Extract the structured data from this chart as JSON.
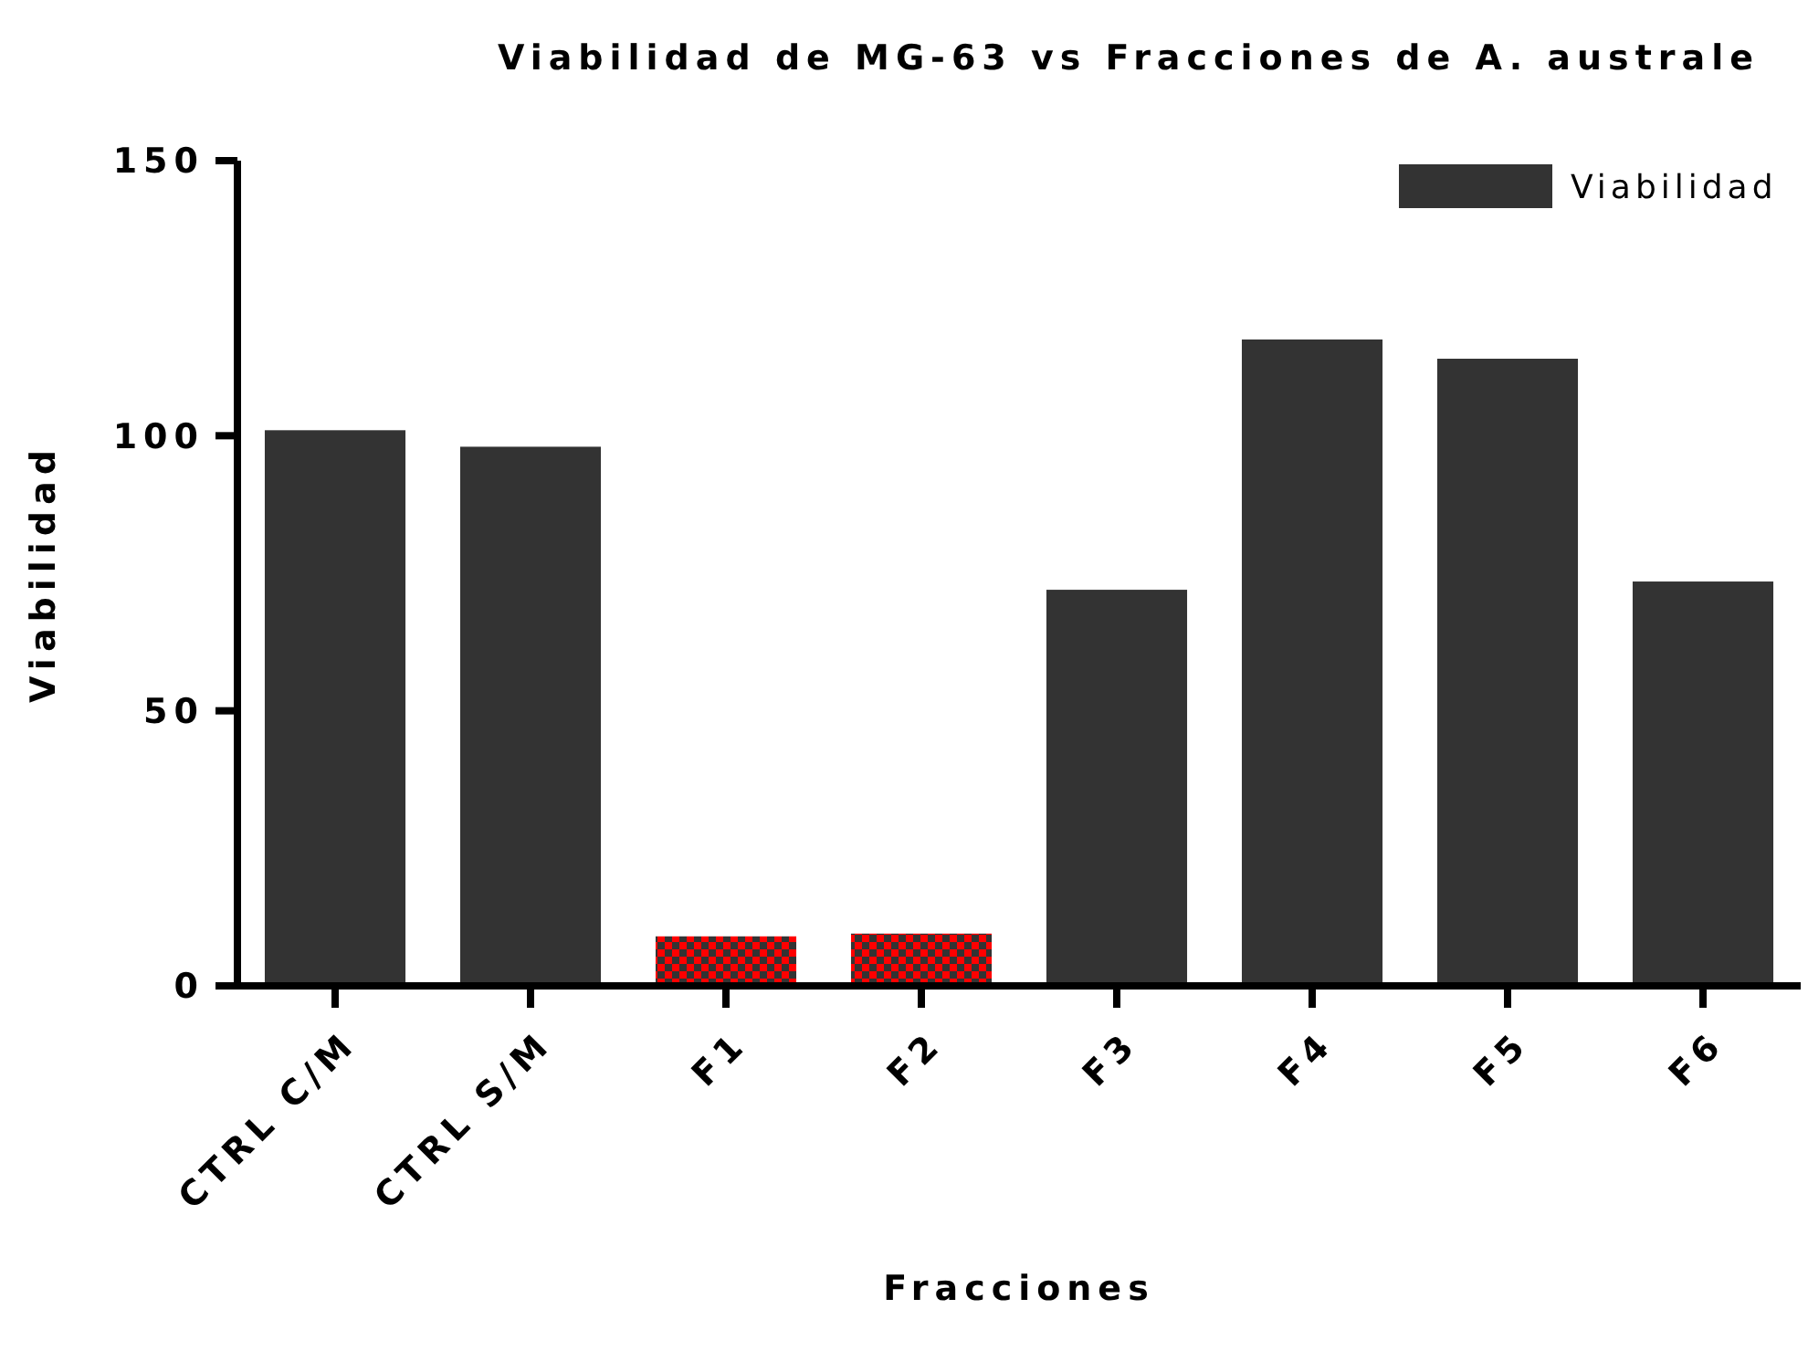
{
  "chart_data": {
    "type": "bar",
    "title": "Viabilidad de MG-63 vs Fracciones de A. australe",
    "xlabel": "Fracciones",
    "ylabel": "Viabilidad",
    "categories": [
      "CTRL C/M",
      "CTRL S/M",
      "F1",
      "F2",
      "F3",
      "F4",
      "F5",
      "F6"
    ],
    "series": [
      {
        "name": "Viabilidad",
        "color": "#333333",
        "colors": [
          "#333333",
          "#333333",
          "#ff0000",
          "#ff0000",
          "#333333",
          "#333333",
          "#333333",
          "#333333"
        ],
        "values": [
          101,
          98,
          9,
          9.5,
          72,
          117.5,
          114,
          73.5
        ]
      }
    ],
    "ylim": [
      0,
      150
    ],
    "yticks": [
      0,
      50,
      100,
      150
    ],
    "grid": false,
    "legend": "top right"
  }
}
